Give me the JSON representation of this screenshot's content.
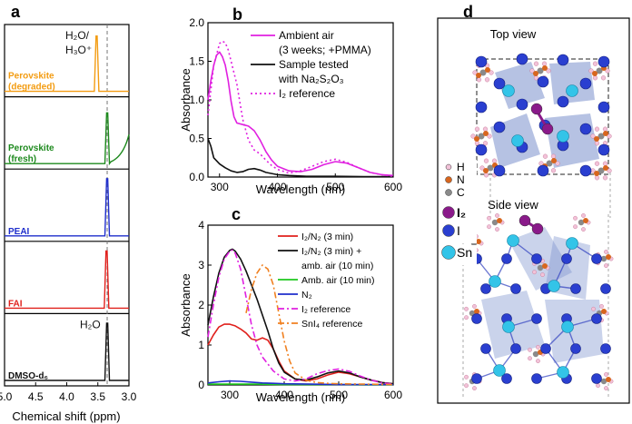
{
  "panel_labels": {
    "a": "a",
    "b": "b",
    "c": "c",
    "d": "d"
  },
  "chart_data": [
    {
      "id": "a",
      "type": "line",
      "xlabel": "Chemical shift (ppm)",
      "xlim": [
        5.0,
        3.0
      ],
      "xticks": [
        "5.0",
        "4.5",
        "4.0",
        "3.5",
        "3.0"
      ],
      "dashed_line_x": 3.35,
      "series": [
        {
          "name": "Perovskite (degraded)",
          "label_lines": [
            "Perovskite",
            "(degraded)"
          ],
          "color": "#f39c12",
          "peak_x": 3.52,
          "peak_frac": 0.85,
          "annotation_lines": [
            "H₂O/",
            "H₃O⁺"
          ]
        },
        {
          "name": "Perovskite (fresh)",
          "label_lines": [
            "Perovskite",
            "(fresh)"
          ],
          "color": "#1e8a1e",
          "peak_x": 3.35,
          "peak_frac": 0.78
        },
        {
          "name": "PEAI",
          "label_lines": [
            "PEAI"
          ],
          "color": "#1f2ecc",
          "peak_x": 3.35,
          "peak_frac": 0.88
        },
        {
          "name": "FAI",
          "label_lines": [
            "FAI"
          ],
          "color": "#e0201c",
          "peak_x": 3.36,
          "peak_frac": 0.88
        },
        {
          "name": "DMSO-d6",
          "label_lines": [
            "DMSO-d₆"
          ],
          "color": "#111111",
          "peak_x": 3.35,
          "peak_frac": 0.88,
          "annotation_lines": [
            "H₂O"
          ]
        }
      ]
    },
    {
      "id": "b",
      "type": "line",
      "xlabel": "Wavelength (nm)",
      "ylabel": "Absorbance",
      "xlim": [
        280,
        600
      ],
      "ylim": [
        0,
        2.0
      ],
      "xticks": [
        300,
        400,
        500,
        600
      ],
      "yticks": [
        "0.0",
        "0.5",
        "1.0",
        "1.5",
        "2.0"
      ],
      "series": [
        {
          "name": "Ambient air (3 weeks; +PMMA)",
          "legend_lines": [
            "Ambient air",
            "(3 weeks; +PMMA)"
          ],
          "color": "#e020e0",
          "style": "solid",
          "x": [
            280,
            285,
            290,
            295,
            300,
            305,
            310,
            315,
            320,
            325,
            330,
            340,
            350,
            360,
            370,
            380,
            390,
            400,
            420,
            440,
            460,
            480,
            500,
            520,
            540,
            560,
            580,
            600
          ],
          "y": [
            1.0,
            1.25,
            1.45,
            1.58,
            1.62,
            1.56,
            1.45,
            1.25,
            0.98,
            0.78,
            0.7,
            0.68,
            0.66,
            0.6,
            0.48,
            0.33,
            0.22,
            0.14,
            0.08,
            0.07,
            0.1,
            0.16,
            0.2,
            0.18,
            0.12,
            0.06,
            0.03,
            0.02
          ]
        },
        {
          "name": "Sample tested with Na2S2O3",
          "legend_lines": [
            "Sample tested",
            "with Na₂S₂O₃"
          ],
          "color": "#111111",
          "style": "solid",
          "x": [
            280,
            285,
            290,
            300,
            310,
            320,
            330,
            340,
            350,
            360,
            370,
            380,
            400,
            420,
            450,
            500,
            550,
            600
          ],
          "y": [
            0.5,
            0.4,
            0.25,
            0.17,
            0.12,
            0.08,
            0.06,
            0.07,
            0.1,
            0.11,
            0.09,
            0.06,
            0.03,
            0.02,
            0.01,
            0.01,
            0.005,
            0.005
          ]
        },
        {
          "name": "I2 reference",
          "legend_lines": [
            "I₂ reference"
          ],
          "color": "#e020e0",
          "style": "dotted",
          "x": [
            280,
            290,
            300,
            305,
            310,
            315,
            320,
            330,
            340,
            350,
            360,
            370,
            380,
            390,
            400,
            420,
            440,
            460,
            480,
            500,
            520,
            540,
            560,
            580,
            600
          ],
          "y": [
            0.8,
            1.45,
            1.73,
            1.76,
            1.74,
            1.65,
            1.5,
            1.2,
            0.75,
            0.48,
            0.35,
            0.3,
            0.22,
            0.15,
            0.1,
            0.05,
            0.08,
            0.14,
            0.2,
            0.23,
            0.19,
            0.12,
            0.06,
            0.03,
            0.01
          ]
        }
      ]
    },
    {
      "id": "c",
      "type": "line",
      "xlabel": "Wavelength (nm)",
      "ylabel": "Absorbance",
      "xlim": [
        260,
        600
      ],
      "ylim": [
        0,
        4
      ],
      "xticks": [
        300,
        400,
        500,
        600
      ],
      "yticks": [
        "0",
        "1",
        "2",
        "3",
        "4"
      ],
      "series": [
        {
          "name": "I2/N2 (3 min)",
          "legend_lines": [
            "I₂/N₂ (3 min)"
          ],
          "color": "#e0201c",
          "style": "solid",
          "x": [
            260,
            270,
            280,
            290,
            300,
            310,
            320,
            330,
            340,
            350,
            360,
            370,
            380,
            390,
            400,
            420,
            440,
            460,
            480,
            500,
            520,
            540,
            560,
            580,
            600
          ],
          "y": [
            1.0,
            1.25,
            1.45,
            1.52,
            1.52,
            1.48,
            1.4,
            1.3,
            1.15,
            1.12,
            1.18,
            1.12,
            0.9,
            0.6,
            0.35,
            0.15,
            0.1,
            0.15,
            0.25,
            0.32,
            0.28,
            0.2,
            0.12,
            0.06,
            0.03
          ]
        },
        {
          "name": "I2/N2 (3 min) + amb. air (10 min)",
          "legend_lines": [
            "I₂/N₂ (3 min) +",
            "amb. air (10 min)"
          ],
          "color": "#111111",
          "style": "solid",
          "x": [
            260,
            270,
            280,
            290,
            300,
            305,
            310,
            320,
            330,
            340,
            350,
            360,
            370,
            380,
            390,
            400,
            420,
            440,
            460,
            480,
            500,
            520,
            540,
            560,
            580,
            600
          ],
          "y": [
            1.5,
            2.2,
            2.8,
            3.2,
            3.37,
            3.4,
            3.35,
            3.15,
            2.85,
            2.5,
            2.15,
            1.75,
            1.35,
            0.9,
            0.55,
            0.32,
            0.15,
            0.12,
            0.2,
            0.3,
            0.35,
            0.3,
            0.2,
            0.12,
            0.06,
            0.03
          ]
        },
        {
          "name": "Amb. air (10 min)",
          "legend_lines": [
            "Amb. air (10 min)"
          ],
          "color": "#1ec81e",
          "style": "solid",
          "x": [
            260,
            300,
            350,
            400,
            450,
            500,
            550,
            600
          ],
          "y": [
            0.02,
            0.02,
            0.02,
            0.01,
            0.01,
            0.01,
            0.005,
            0.005
          ]
        },
        {
          "name": "N2",
          "legend_lines": [
            "N₂"
          ],
          "color": "#1f2ecc",
          "style": "solid",
          "x": [
            260,
            280,
            300,
            320,
            340,
            360,
            380,
            400,
            450,
            500,
            550,
            600
          ],
          "y": [
            0.05,
            0.08,
            0.1,
            0.09,
            0.07,
            0.05,
            0.04,
            0.03,
            0.02,
            0.01,
            0.01,
            0.01
          ]
        },
        {
          "name": "I2 reference",
          "legend_lines": [
            "I₂ reference"
          ],
          "color": "#e020e0",
          "style": "dashdot",
          "x": [
            260,
            270,
            280,
            290,
            300,
            305,
            310,
            320,
            330,
            340,
            350,
            360,
            380,
            400,
            420,
            440,
            460,
            480,
            500,
            520,
            540,
            560,
            580,
            600
          ],
          "y": [
            1.2,
            2.0,
            2.7,
            3.15,
            3.35,
            3.38,
            3.3,
            2.9,
            2.2,
            1.5,
            1.0,
            0.7,
            0.35,
            0.15,
            0.1,
            0.15,
            0.28,
            0.36,
            0.4,
            0.34,
            0.22,
            0.12,
            0.05,
            0.02
          ]
        },
        {
          "name": "SnI4 reference",
          "legend_lines": [
            "SnI₄ reference"
          ],
          "color": "#f08020",
          "style": "dashdot",
          "x": [
            330,
            340,
            350,
            360,
            370,
            380,
            390,
            400,
            410,
            420,
            440,
            460,
            480,
            500,
            550,
            600
          ],
          "y": [
            1.8,
            2.4,
            2.8,
            3.0,
            2.9,
            2.5,
            1.8,
            1.1,
            0.6,
            0.3,
            0.12,
            0.06,
            0.04,
            0.03,
            0.02,
            0.01
          ]
        }
      ]
    }
  ],
  "structure": {
    "top_view_label": "Top view",
    "side_view_label": "Side view",
    "legend": [
      {
        "label": "H",
        "color": "#f2c2d8"
      },
      {
        "label": "N",
        "color": "#d8661e"
      },
      {
        "label": "C",
        "color": "#8a8a8a"
      },
      {
        "label": "I₂",
        "color": "#8a1a8a"
      },
      {
        "label": "I",
        "color": "#2a3fd0"
      },
      {
        "label": "Sn",
        "color": "#33c4e8"
      }
    ]
  }
}
